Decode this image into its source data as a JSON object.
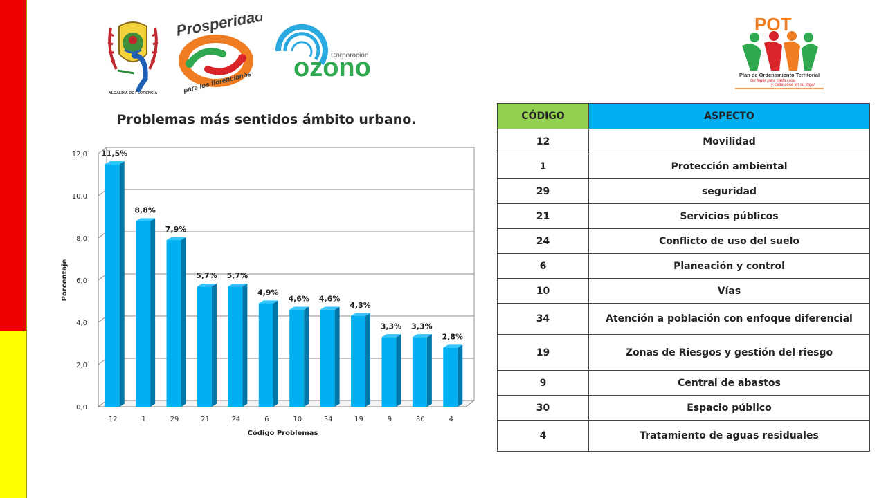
{
  "logos": {
    "alcaldia": "ALCALDIA DE FLORENCIA",
    "prosperidad_1": "Prosperidad",
    "prosperidad_2": "para los florencianos",
    "ozono_1": "Corporación",
    "ozono_2": "ozono",
    "pot_1": "POT",
    "pot_2": "Plan de Ordenamiento Territorial",
    "pot_3": "Un lugar para cada cosa",
    "pot_4": "y cada cosa en su lugar"
  },
  "chart_data": {
    "type": "bar",
    "title": "Problemas más sentidos ámbito urbano.",
    "xlabel": "Código Problemas",
    "ylabel": "Porcentaje",
    "ylim": [
      0,
      12
    ],
    "yticks": [
      "0,0",
      "2,0",
      "4,0",
      "6,0",
      "8,0",
      "10,0",
      "12,0"
    ],
    "categories": [
      "12",
      "1",
      "29",
      "21",
      "24",
      "6",
      "10",
      "34",
      "19",
      "9",
      "30",
      "4"
    ],
    "values": [
      11.5,
      8.8,
      7.9,
      5.7,
      5.7,
      4.9,
      4.6,
      4.6,
      4.3,
      3.3,
      3.3,
      2.8
    ],
    "data_labels": [
      "11,5%",
      "8,8%",
      "7,9%",
      "5,7%",
      "5,7%",
      "4,9%",
      "4,6%",
      "4,6%",
      "4,3%",
      "3,3%",
      "3,3%",
      "2,8%"
    ],
    "grid": true,
    "bar_color": "#00b0f0"
  },
  "table": {
    "headers": [
      "CÓDIGO",
      "ASPECTO"
    ],
    "rows": [
      [
        "12",
        "Movilidad"
      ],
      [
        "1",
        "Protección ambiental"
      ],
      [
        "29",
        "seguridad"
      ],
      [
        "21",
        "Servicios públicos"
      ],
      [
        "24",
        "Conflicto de uso del suelo"
      ],
      [
        "6",
        "Planeación y control"
      ],
      [
        "10",
        "Vías"
      ],
      [
        "34",
        "Atención a población con enfoque diferencial"
      ],
      [
        "19",
        "Zonas de Riesgos y gestión del riesgo"
      ],
      [
        "9",
        "Central de abastos"
      ],
      [
        "30",
        "Espacio público"
      ],
      [
        "4",
        "Tratamiento de aguas residuales"
      ]
    ]
  }
}
